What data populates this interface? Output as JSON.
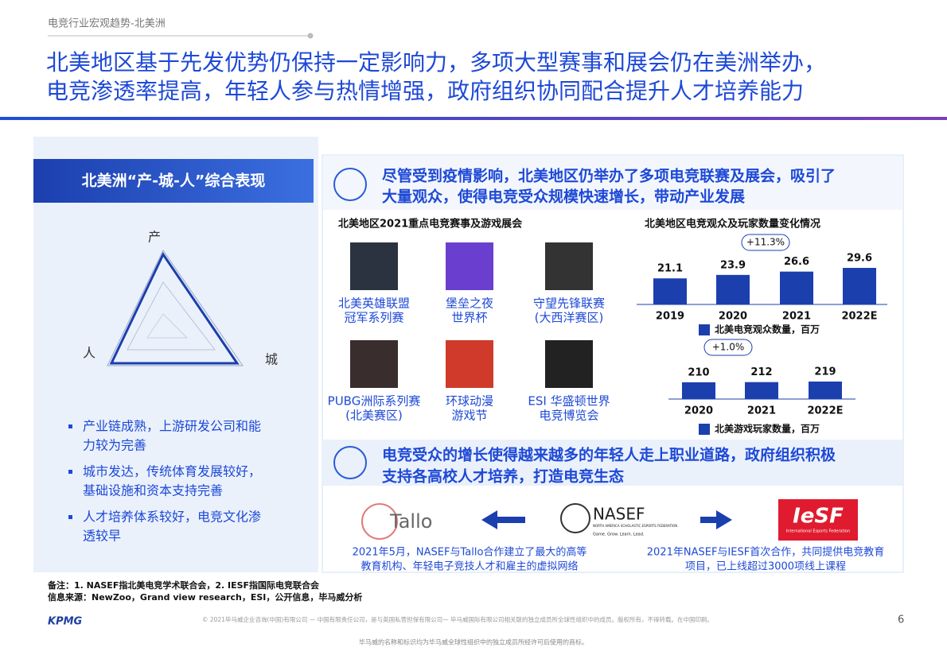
{
  "header": {
    "breadcrumb": "电竞行业宏观趋势-北美洲",
    "title_lines": [
      "北美地区基于先发优势仍保持一定影响力，多项大型赛事和展会仍在美洲举办，",
      "电竞渗透率提高，年轻人参与热情增强，政府组织协同配合提升人才培养能力"
    ]
  },
  "left": {
    "title": "北美洲“产-城-人”综合表现",
    "radar_labels": [
      "产",
      "城",
      "人"
    ],
    "bullets": [
      [
        "产业链成熟，上游研发公司和能",
        "力较为完善"
      ],
      [
        "城市发达，传统体育发展较好，",
        "基础设施和资本支持完善"
      ],
      [
        "人才培养体系较好，电竞文化渗",
        "透较早"
      ]
    ]
  },
  "section1": {
    "heading_lines": [
      "尽管受到疫情影响，北美地区仍举办了多项电竞联赛及展会，吸引了",
      "大量观众，使得电竞受众规模快速增长，带动产业发展"
    ],
    "events_title": "北美地区2021重点电竞赛事及游戏展会",
    "events": [
      [
        "北美英雄联盟",
        "冠军系列赛"
      ],
      [
        "堡垒之夜",
        "世界杯"
      ],
      [
        "守望先锋联赛",
        "(大西洋赛区)"
      ],
      [
        "PUBG洲际系列赛",
        "(北美赛区)"
      ],
      [
        "环球动漫",
        "游戏节"
      ],
      [
        "ESI 华盛顿世界",
        "电竞博览会"
      ]
    ]
  },
  "audience_chart": {
    "type": "bar",
    "title": "北美地区电竞观众及玩家数量变化情况",
    "categories": [
      "2019",
      "2020",
      "2021",
      "2022E"
    ],
    "values": [
      21.1,
      23.9,
      26.6,
      29.6
    ],
    "series_name": "北美电竞观众数量，百万",
    "growth_label": "+11.3%",
    "color": "#1c3fae"
  },
  "players_chart": {
    "type": "bar",
    "categories": [
      "2020",
      "2021",
      "2022E"
    ],
    "values": [
      210,
      212,
      219
    ],
    "series_name": "北美游戏玩家数量，百万",
    "growth_label": "+1.0%",
    "color": "#1c3fae"
  },
  "section2": {
    "heading_lines": [
      "电竞受众的增长使得越来越多的年轻人走上职业道路，政府组织积极",
      "支持各高校人才培养，打造电竞生态"
    ],
    "logos": {
      "tallo": "Tallo",
      "nasef": "NASEF",
      "nasef_sub": "NORTH AMERICA SCHOLASTIC ESPORTS FEDERATION",
      "nasef_motto": "Game. Grow. Learn. Lead.",
      "iesf": "IeSF",
      "iesf_sub": "International Esports Federation"
    },
    "notes": [
      [
        "2021年5月，NASEF与Tallo合作建立了最大的高等",
        "教育机构、年轻电子竞技人才和雇主的虚拟网络"
      ],
      [
        "2021年NASEF与IESF首次合作，共同提供电竞教育",
        "项目，已上线超过3000项线上课程"
      ]
    ]
  },
  "footer": {
    "remark": "备注：1. NASEF指北美电竞学术联合会，2. IESF指国际电竞联合会",
    "source": "信息来源：NewZoo，Grand view research，ESI，公开信息，毕马威分析",
    "brand": "KPMG",
    "copyright": "© 2021毕马威企业咨询(中国)有限公司 — 中国有限责任公司，是与英国私营担保有限公司— 毕马威国际有限公司相关联的独立成员所全球性组织中的成员。版权所有，不得转载。在中国印刷。",
    "page": "6",
    "trademark": "毕马威的名称和标识均为毕马威全球性组织中的独立成员所经许可后使用的商标。"
  }
}
